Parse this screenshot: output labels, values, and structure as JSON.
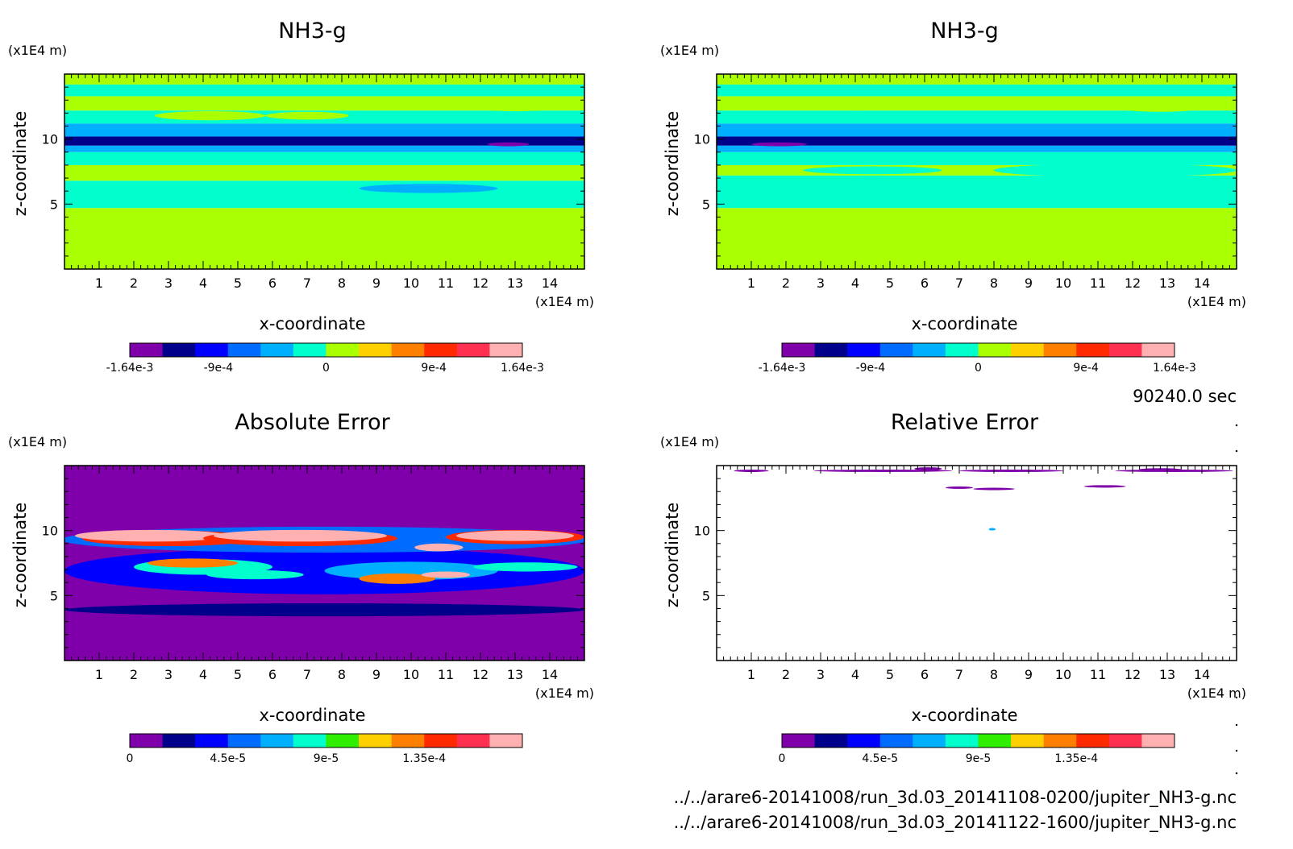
{
  "chart_data": [
    {
      "type": "heatmap",
      "title": "NH3-g",
      "xlabel": "x-coordinate",
      "ylabel": "z-coordinate",
      "x_unit": "(x1E4 m)",
      "y_unit": "(x1E4 m)",
      "xlim": [
        0,
        15
      ],
      "ylim": [
        0,
        15
      ],
      "xticks": [
        "1",
        "2",
        "3",
        "4",
        "5",
        "6",
        "7",
        "8",
        "9",
        "10",
        "11",
        "12",
        "13",
        "14"
      ],
      "yticks": [
        "5",
        "10"
      ],
      "colorbar": {
        "colors": [
          "#7f00aa",
          "#00008a",
          "#0000ff",
          "#006bff",
          "#00b0ff",
          "#00ffcc",
          "#aaff00",
          "#ffd000",
          "#ff8000",
          "#ff2a00",
          "#ff3050",
          "#ffb0b0"
        ],
        "tick_labels": [
          "-1.64e-3",
          "-9e-4",
          "0",
          "9e-4",
          "1.64e-3"
        ],
        "tick_values": [
          -0.00164,
          -0.0009,
          0,
          0.0009,
          0.00164
        ],
        "range": [
          -0.00164,
          0.00164
        ]
      },
      "bands": [
        {
          "z": [
            0,
            4.7
          ],
          "level": 6
        },
        {
          "z": [
            4.7,
            6.8
          ],
          "level": 5
        },
        {
          "z": [
            6.8,
            8.0
          ],
          "level": 6
        },
        {
          "z": [
            8.0,
            9.0
          ],
          "level": 5
        },
        {
          "z": [
            9.0,
            9.5
          ],
          "level": 4
        },
        {
          "z": [
            9.5,
            10.2
          ],
          "level": 1
        },
        {
          "z": [
            10.2,
            11.2
          ],
          "level": 4
        },
        {
          "z": [
            11.2,
            12.2
          ],
          "level": 5
        },
        {
          "z": [
            12.2,
            13.3
          ],
          "level": 6
        },
        {
          "z": [
            13.3,
            14.2
          ],
          "level": 5
        },
        {
          "z": [
            14.2,
            15.0
          ],
          "level": 6
        }
      ],
      "blobs": [
        {
          "x": 10.5,
          "z": 6.2,
          "rx": 2.0,
          "rz": 0.35,
          "level": 4
        },
        {
          "x": 4.2,
          "z": 11.8,
          "rx": 1.6,
          "rz": 0.35,
          "level": 6
        },
        {
          "x": 7.0,
          "z": 11.8,
          "rx": 1.2,
          "rz": 0.3,
          "level": 6
        },
        {
          "x": 13.0,
          "z": 12.5,
          "rx": 1.5,
          "rz": 0.35,
          "level": 6
        },
        {
          "x": 12.8,
          "z": 9.6,
          "rx": 0.6,
          "rz": 0.15,
          "level": 0
        }
      ]
    },
    {
      "type": "heatmap",
      "title": "NH3-g",
      "xlabel": "x-coordinate",
      "ylabel": "z-coordinate",
      "x_unit": "(x1E4 m)",
      "y_unit": "(x1E4 m)",
      "xlim": [
        0,
        15
      ],
      "ylim": [
        0,
        15
      ],
      "xticks": [
        "1",
        "2",
        "3",
        "4",
        "5",
        "6",
        "7",
        "8",
        "9",
        "10",
        "11",
        "12",
        "13",
        "14"
      ],
      "yticks": [
        "5",
        "10"
      ],
      "colorbar": {
        "colors": [
          "#7f00aa",
          "#00008a",
          "#0000ff",
          "#006bff",
          "#00b0ff",
          "#00ffcc",
          "#aaff00",
          "#ffd000",
          "#ff8000",
          "#ff2a00",
          "#ff3050",
          "#ffb0b0"
        ],
        "tick_labels": [
          "-1.64e-3",
          "-9e-4",
          "0",
          "9e-4",
          "1.64e-3"
        ],
        "tick_values": [
          -0.00164,
          -0.0009,
          0,
          0.0009,
          0.00164
        ],
        "range": [
          -0.00164,
          0.00164
        ]
      },
      "bands": [
        {
          "z": [
            0,
            4.7
          ],
          "level": 6
        },
        {
          "z": [
            4.7,
            7.2
          ],
          "level": 5
        },
        {
          "z": [
            7.2,
            8.0
          ],
          "level": 6
        },
        {
          "z": [
            8.0,
            9.0
          ],
          "level": 5
        },
        {
          "z": [
            9.0,
            9.5
          ],
          "level": 4
        },
        {
          "z": [
            9.5,
            10.2
          ],
          "level": 1
        },
        {
          "z": [
            10.2,
            11.2
          ],
          "level": 4
        },
        {
          "z": [
            11.2,
            12.2
          ],
          "level": 5
        },
        {
          "z": [
            12.2,
            13.3
          ],
          "level": 6
        },
        {
          "z": [
            13.3,
            14.2
          ],
          "level": 5
        },
        {
          "z": [
            14.2,
            15.0
          ],
          "level": 6
        }
      ],
      "blobs": [
        {
          "x": 11.5,
          "z": 7.6,
          "rx": 3.5,
          "rz": 0.5,
          "level": 5
        },
        {
          "x": 4.5,
          "z": 7.6,
          "rx": 2.0,
          "rz": 0.3,
          "level": 5
        },
        {
          "x": 1.8,
          "z": 9.6,
          "rx": 0.8,
          "rz": 0.15,
          "level": 0
        },
        {
          "x": 4.0,
          "z": 12.5,
          "rx": 1.6,
          "rz": 0.3,
          "level": 6
        },
        {
          "x": 12.8,
          "z": 12.4,
          "rx": 1.2,
          "rz": 0.3,
          "level": 6
        }
      ]
    },
    {
      "type": "heatmap",
      "title": "Absolute Error",
      "xlabel": "x-coordinate",
      "ylabel": "z-coordinate",
      "x_unit": "(x1E4 m)",
      "y_unit": "(x1E4 m)",
      "xlim": [
        0,
        15
      ],
      "ylim": [
        0,
        15
      ],
      "xticks": [
        "1",
        "2",
        "3",
        "4",
        "5",
        "6",
        "7",
        "8",
        "9",
        "10",
        "11",
        "12",
        "13",
        "14"
      ],
      "yticks": [
        "5",
        "10"
      ],
      "colorbar": {
        "colors": [
          "#7f00aa",
          "#00008a",
          "#0000ff",
          "#006bff",
          "#00b0ff",
          "#00ffcc",
          "#30ee00",
          "#ffd000",
          "#ff8000",
          "#ff2a00",
          "#ff3050",
          "#ffb0b0"
        ],
        "tick_labels": [
          "0",
          "4.5e-5",
          "9e-5",
          "1.35e-4"
        ],
        "tick_values": [
          0,
          4.5e-05,
          9e-05,
          0.000135
        ],
        "range": [
          0,
          0.00018
        ]
      },
      "bands": [
        {
          "z": [
            0,
            15
          ],
          "level": 0
        }
      ],
      "blobs": [
        {
          "x": 7.5,
          "z": 3.9,
          "rx": 7.5,
          "rz": 0.5,
          "level": 1
        },
        {
          "x": 7.5,
          "z": 6.9,
          "rx": 7.5,
          "rz": 1.8,
          "level": 2
        },
        {
          "x": 4.0,
          "z": 7.2,
          "rx": 2.0,
          "rz": 0.6,
          "level": 5
        },
        {
          "x": 3.7,
          "z": 7.5,
          "rx": 1.3,
          "rz": 0.35,
          "level": 8
        },
        {
          "x": 5.5,
          "z": 6.6,
          "rx": 1.4,
          "rz": 0.35,
          "level": 5
        },
        {
          "x": 10.0,
          "z": 6.9,
          "rx": 2.5,
          "rz": 0.7,
          "level": 4
        },
        {
          "x": 9.6,
          "z": 6.3,
          "rx": 1.1,
          "rz": 0.4,
          "level": 8
        },
        {
          "x": 11.0,
          "z": 6.6,
          "rx": 0.7,
          "rz": 0.25,
          "level": 11
        },
        {
          "x": 13.3,
          "z": 7.2,
          "rx": 1.5,
          "rz": 0.35,
          "level": 5
        },
        {
          "x": 7.5,
          "z": 9.3,
          "rx": 7.6,
          "rz": 1.0,
          "level": 3
        },
        {
          "x": 3.0,
          "z": 9.4,
          "rx": 2.5,
          "rz": 0.6,
          "level": 9
        },
        {
          "x": 2.5,
          "z": 9.6,
          "rx": 2.2,
          "rz": 0.45,
          "level": 11
        },
        {
          "x": 6.8,
          "z": 9.4,
          "rx": 2.8,
          "rz": 0.6,
          "level": 9
        },
        {
          "x": 6.8,
          "z": 9.6,
          "rx": 2.5,
          "rz": 0.45,
          "level": 11
        },
        {
          "x": 13.0,
          "z": 9.5,
          "rx": 2.0,
          "rz": 0.55,
          "level": 9
        },
        {
          "x": 13.0,
          "z": 9.6,
          "rx": 1.7,
          "rz": 0.4,
          "level": 11
        },
        {
          "x": 10.8,
          "z": 8.7,
          "rx": 0.7,
          "rz": 0.3,
          "level": 11
        }
      ]
    },
    {
      "type": "heatmap",
      "title": "Relative Error",
      "xlabel": "x-coordinate",
      "ylabel": "z-coordinate",
      "x_unit": "(x1E4 m)",
      "y_unit": "(x1E4 m)",
      "xlim": [
        0,
        15
      ],
      "ylim": [
        0,
        15
      ],
      "xticks": [
        "1",
        "2",
        "3",
        "4",
        "5",
        "6",
        "7",
        "8",
        "9",
        "10",
        "11",
        "12",
        "13",
        "14"
      ],
      "yticks": [
        "5",
        "10"
      ],
      "colorbar": {
        "colors": [
          "#7f00aa",
          "#00008a",
          "#0000ff",
          "#006bff",
          "#00b0ff",
          "#00ffcc",
          "#30ee00",
          "#ffd000",
          "#ff8000",
          "#ff2a00",
          "#ff3050",
          "#ffb0b0"
        ],
        "tick_labels": [
          "0",
          "4.5e-5",
          "9e-5",
          "1.35e-4"
        ],
        "tick_values": [
          0,
          4.5e-05,
          9e-05,
          0.000135
        ],
        "range": [
          0,
          0.00018
        ]
      },
      "bands": [],
      "blobs": [
        {
          "x": 1.0,
          "z": 14.6,
          "rx": 0.5,
          "rz": 0.06,
          "level": 0
        },
        {
          "x": 4.8,
          "z": 14.6,
          "rx": 2.0,
          "rz": 0.06,
          "level": 0
        },
        {
          "x": 8.5,
          "z": 14.6,
          "rx": 1.5,
          "rz": 0.06,
          "level": 0
        },
        {
          "x": 13.2,
          "z": 14.6,
          "rx": 1.7,
          "rz": 0.06,
          "level": 0
        },
        {
          "x": 6.1,
          "z": 14.75,
          "rx": 0.4,
          "rz": 0.12,
          "level": 0
        },
        {
          "x": 12.8,
          "z": 14.7,
          "rx": 0.6,
          "rz": 0.1,
          "level": 0
        },
        {
          "x": 7.0,
          "z": 13.3,
          "rx": 0.4,
          "rz": 0.06,
          "level": 0
        },
        {
          "x": 8.0,
          "z": 13.2,
          "rx": 0.6,
          "rz": 0.06,
          "level": 0
        },
        {
          "x": 11.2,
          "z": 13.4,
          "rx": 0.6,
          "rz": 0.08,
          "level": 0
        },
        {
          "x": 7.95,
          "z": 10.1,
          "rx": 0.1,
          "rz": 0.05,
          "level": 4
        }
      ]
    }
  ],
  "time_label": "90240.0 sec",
  "files": [
    "../../arare6-20141008/run_3d.03_20141108-0200/jupiter_NH3-g.nc",
    "../../arare6-20141008/run_3d.03_20141122-1600/jupiter_NH3-g.nc"
  ]
}
